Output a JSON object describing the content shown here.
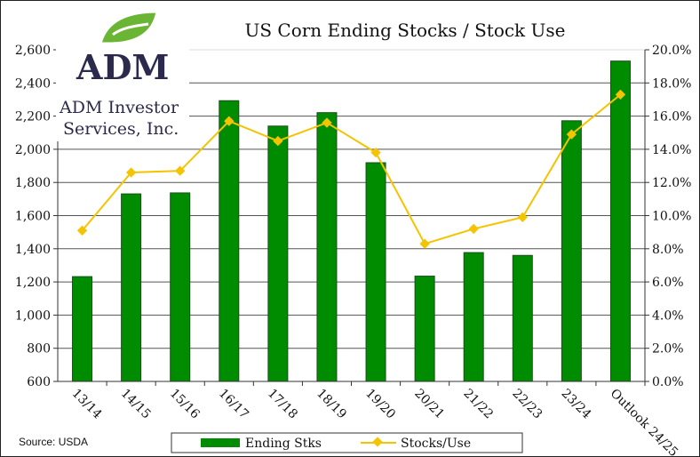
{
  "logo": {
    "mark": "ADM",
    "text_line1": "ADM Investor",
    "text_line2": "Services, Inc."
  },
  "source": "Source: USDA",
  "chart_data": {
    "type": "bar",
    "title": "US Corn Ending Stocks / Stock Use",
    "categories": [
      "13/14",
      "14/15",
      "15/16",
      "16/17",
      "17/18",
      "18/19",
      "19/20",
      "20/21",
      "21/22",
      "22/23",
      "23/24",
      "Outlook 24/25"
    ],
    "series": [
      {
        "name": "Ending Stks",
        "type": "bar",
        "axis": "left",
        "color": "#008c00",
        "values": [
          1232,
          1731,
          1737,
          2293,
          2140,
          2221,
          1919,
          1235,
          1377,
          1360,
          2172,
          2532
        ]
      },
      {
        "name": "Stocks/Use",
        "type": "line",
        "axis": "right",
        "color": "#f5c400",
        "values": [
          9.1,
          12.6,
          12.7,
          15.7,
          14.5,
          15.6,
          13.8,
          8.3,
          9.2,
          9.9,
          14.9,
          17.3
        ]
      }
    ],
    "y_left": {
      "min": 600,
      "max": 2600,
      "ticks": [
        "600",
        "800",
        "1,000",
        "1,200",
        "1,400",
        "1,600",
        "1,800",
        "2,000",
        "2,200",
        "2,400",
        "2,600"
      ]
    },
    "y_right": {
      "min": 0,
      "max": 20,
      "ticks": [
        "0.0%",
        "2.0%",
        "4.0%",
        "6.0%",
        "8.0%",
        "10.0%",
        "12.0%",
        "14.0%",
        "16.0%",
        "18.0%",
        "20.0%"
      ]
    },
    "grid": true,
    "legend": "bottom"
  }
}
